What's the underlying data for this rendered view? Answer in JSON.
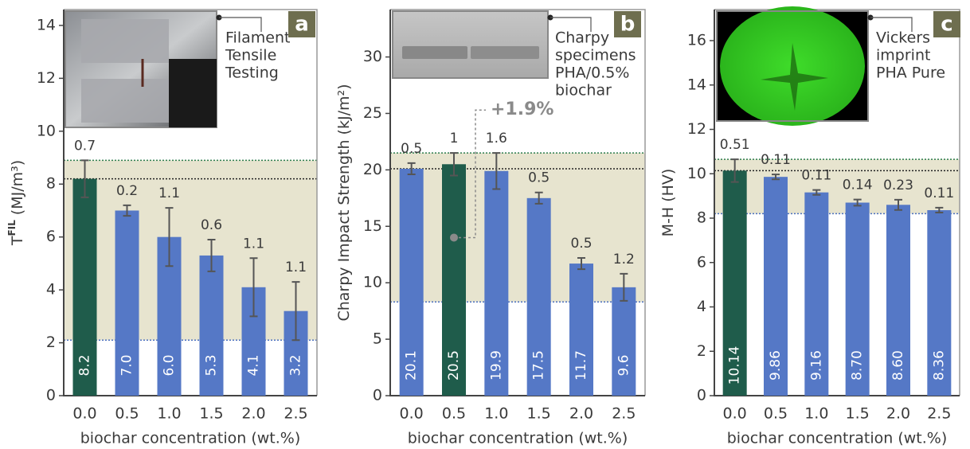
{
  "chart_data": [
    {
      "type": "bar",
      "label": "a",
      "ylabel": [
        "T",
        "FIL",
        " (MJ/m³)"
      ],
      "xlabel": "biochar concentration (wt.%)",
      "categories": [
        "0.0",
        "0.5",
        "1.0",
        "1.5",
        "2.0",
        "2.5"
      ],
      "values": [
        8.2,
        7,
        6,
        5.3,
        4.1,
        3.2
      ],
      "value_labels": [
        "8.2",
        "7.0",
        "6.0",
        "5.3",
        "4.1",
        "3.2"
      ],
      "errors": [
        0.7,
        0.2,
        1.1,
        0.6,
        1.1,
        1.1
      ],
      "colors": [
        "#1f5c4b",
        "#5578c6",
        "#5578c6",
        "#5578c6",
        "#5578c6",
        "#5578c6"
      ],
      "ylim": [
        0,
        14.6
      ],
      "yticks": [
        0,
        2,
        4,
        6,
        8,
        10,
        12,
        14
      ],
      "band": [
        2.1,
        8.9
      ],
      "reference_line": 8.2,
      "inset_caption": [
        "Filament",
        "Tensile",
        "Testing"
      ]
    },
    {
      "type": "bar",
      "label": "b",
      "ylabel": [
        "Charpy Impact Strength (kJ/m²)"
      ],
      "xlabel": "biochar concentration (wt.%)",
      "categories": [
        "0.0",
        "0.5",
        "1.0",
        "1.5",
        "2.0",
        "2.5"
      ],
      "values": [
        20.1,
        20.5,
        19.9,
        17.5,
        11.7,
        9.6
      ],
      "errors": [
        0.5,
        1.0,
        1.6,
        0.5,
        0.5,
        1.2
      ],
      "colors": [
        "#5578c6",
        "#1f5c4b",
        "#5578c6",
        "#5578c6",
        "#5578c6",
        "#5578c6"
      ],
      "ylim": [
        0,
        34.2
      ],
      "yticks": [
        0,
        5,
        10,
        15,
        20,
        25,
        30
      ],
      "band": [
        8.3,
        21.5
      ],
      "reference_line": 20.1,
      "annotation": "+1.9%",
      "inset_caption": [
        "Charpy",
        "specimens",
        "PHA/0.5%",
        "biochar"
      ]
    },
    {
      "type": "bar",
      "label": "c",
      "ylabel": [
        "M-H (HV)"
      ],
      "xlabel": "biochar concentration (wt.%)",
      "categories": [
        "0.0",
        "0.5",
        "1.0",
        "1.5",
        "2.0",
        "2.5"
      ],
      "values": [
        10.14,
        9.86,
        9.16,
        8.7,
        8.6,
        8.36
      ],
      "value_labels": [
        "10.14",
        "9.86",
        "9.16",
        "8.70",
        "8.60",
        "8.36"
      ],
      "errors": [
        0.51,
        0.11,
        0.11,
        0.14,
        0.23,
        0.11
      ],
      "colors": [
        "#1f5c4b",
        "#5578c6",
        "#5578c6",
        "#5578c6",
        "#5578c6",
        "#5578c6"
      ],
      "ylim": [
        0,
        17.4
      ],
      "yticks": [
        0,
        2,
        4,
        6,
        8,
        10,
        12,
        14,
        16
      ],
      "band": [
        8.2,
        10.65
      ],
      "reference_line": 10.14,
      "inset_caption": [
        "Vickers",
        "imprint",
        "PHA Pure"
      ]
    }
  ]
}
